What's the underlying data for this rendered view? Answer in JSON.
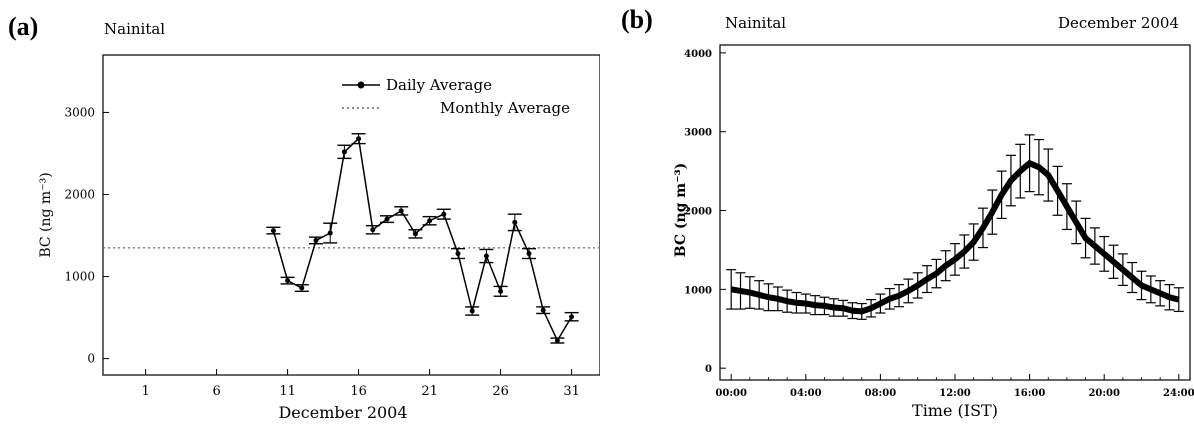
{
  "panels": {
    "a": {
      "label": "(a)",
      "site": "Nainital"
    },
    "b": {
      "label": "(b)",
      "site": "Nainital",
      "period": "December 2004"
    }
  },
  "chart_data": [
    {
      "type": "line",
      "panel": "(a)",
      "xlabel": "December 2004",
      "ylabel": "BC (ng m⁻³)",
      "xlim": [
        -2,
        33
      ],
      "ylim": [
        -200,
        3700
      ],
      "xticks": [
        1,
        6,
        11,
        16,
        21,
        26,
        31
      ],
      "yticks": [
        0,
        1000,
        2000,
        3000
      ],
      "legend": {
        "position": "top-right",
        "entries": [
          "Daily Average",
          "Monthly Average"
        ]
      },
      "series": [
        {
          "name": "Daily Average",
          "x": [
            10,
            11,
            12,
            13,
            14,
            15,
            16,
            17,
            18,
            19,
            20,
            21,
            22,
            23,
            24,
            25,
            26,
            27,
            28,
            29,
            30,
            31
          ],
          "values": [
            1560,
            950,
            860,
            1440,
            1530,
            2520,
            2680,
            1570,
            1700,
            1800,
            1520,
            1680,
            1760,
            1280,
            580,
            1250,
            820,
            1660,
            1280,
            590,
            220,
            510
          ],
          "errors": [
            40,
            40,
            40,
            40,
            120,
            80,
            60,
            50,
            40,
            50,
            50,
            50,
            60,
            60,
            50,
            80,
            60,
            100,
            60,
            40,
            30,
            50
          ]
        },
        {
          "name": "Monthly Average",
          "value": 1350
        }
      ]
    },
    {
      "type": "line",
      "panel": "(b)",
      "xlabel": "Time (IST)",
      "ylabel": "BC (ng m⁻³)",
      "xlim": [
        -0.6,
        24.6
      ],
      "ylim": [
        -150,
        4100
      ],
      "xticks": [
        "00:00",
        "04:00",
        "08:00",
        "12:00",
        "16:00",
        "20:00",
        "24:00"
      ],
      "yticks": [
        0,
        1000,
        2000,
        3000,
        4000
      ],
      "series": [
        {
          "name": "Diurnal BC",
          "hours": [
            0,
            0.5,
            1,
            1.5,
            2,
            2.5,
            3,
            3.5,
            4,
            4.5,
            5,
            5.5,
            6,
            6.5,
            7,
            7.5,
            8,
            8.5,
            9,
            9.5,
            10,
            10.5,
            11,
            11.5,
            12,
            12.5,
            13,
            13.5,
            14,
            14.5,
            15,
            15.5,
            16,
            16.5,
            17,
            17.5,
            18,
            18.5,
            19,
            19.5,
            20,
            20.5,
            21,
            21.5,
            22,
            22.5,
            23,
            23.5,
            24
          ],
          "values": [
            1000,
            980,
            960,
            930,
            900,
            880,
            850,
            830,
            820,
            800,
            790,
            770,
            760,
            730,
            720,
            760,
            820,
            880,
            920,
            980,
            1050,
            1130,
            1200,
            1300,
            1380,
            1480,
            1600,
            1780,
            1980,
            2200,
            2380,
            2500,
            2600,
            2550,
            2450,
            2250,
            2050,
            1850,
            1650,
            1550,
            1450,
            1350,
            1250,
            1150,
            1050,
            1000,
            950,
            900,
            870
          ],
          "errors": [
            250,
            230,
            200,
            180,
            170,
            150,
            140,
            130,
            120,
            120,
            110,
            110,
            100,
            100,
            100,
            110,
            120,
            130,
            140,
            150,
            160,
            170,
            180,
            190,
            200,
            210,
            230,
            250,
            280,
            300,
            320,
            340,
            360,
            350,
            330,
            310,
            290,
            270,
            250,
            230,
            220,
            210,
            200,
            190,
            180,
            170,
            160,
            160,
            150
          ]
        }
      ]
    }
  ]
}
